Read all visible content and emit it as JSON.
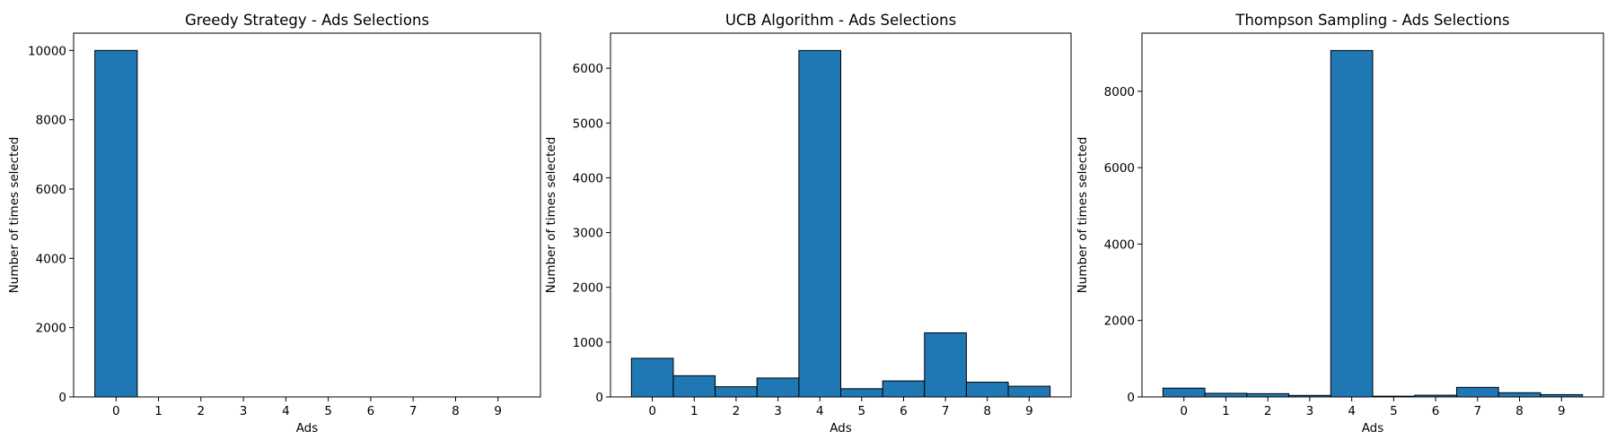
{
  "chart_data": [
    {
      "type": "bar",
      "title": "Greedy Strategy - Ads Selections",
      "xlabel": "Ads",
      "ylabel": "Number of times selected",
      "categories": [
        "0",
        "1",
        "2",
        "3",
        "4",
        "5",
        "6",
        "7",
        "8",
        "9"
      ],
      "values": [
        10000,
        0,
        0,
        0,
        0,
        0,
        0,
        0,
        0,
        0
      ],
      "ylim": [
        0,
        10500
      ],
      "yticks": [
        0,
        2000,
        4000,
        6000,
        8000,
        10000
      ],
      "xlim": [
        -1,
        10
      ],
      "bar_color": "#1f77b4",
      "edge_color": "#000000",
      "grid": false
    },
    {
      "type": "bar",
      "title": "UCB Algorithm - Ads Selections",
      "xlabel": "Ads",
      "ylabel": "Number of times selected",
      "categories": [
        "0",
        "1",
        "2",
        "3",
        "4",
        "5",
        "6",
        "7",
        "8",
        "9"
      ],
      "values": [
        705,
        387,
        186,
        345,
        6323,
        150,
        292,
        1170,
        269,
        195
      ],
      "ylim": [
        0,
        6640
      ],
      "yticks": [
        0,
        1000,
        2000,
        3000,
        4000,
        5000,
        6000
      ],
      "xlim": [
        -1,
        10
      ],
      "bar_color": "#1f77b4",
      "edge_color": "#000000",
      "grid": false
    },
    {
      "type": "bar",
      "title": "Thompson Sampling - Ads Selections",
      "xlabel": "Ads",
      "ylabel": "Number of times selected",
      "categories": [
        "0",
        "1",
        "2",
        "3",
        "4",
        "5",
        "6",
        "7",
        "8",
        "9"
      ],
      "values": [
        230,
        95,
        85,
        40,
        9065,
        20,
        45,
        250,
        110,
        60
      ],
      "ylim": [
        0,
        9520
      ],
      "yticks": [
        0,
        2000,
        4000,
        6000,
        8000
      ],
      "xlim": [
        -1,
        10
      ],
      "bar_color": "#1f77b4",
      "edge_color": "#000000",
      "grid": false
    }
  ]
}
